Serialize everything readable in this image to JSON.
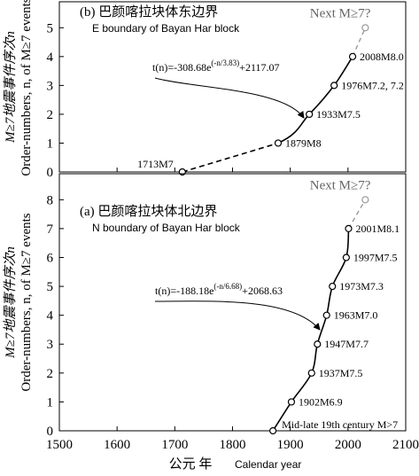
{
  "chart_data": [
    {
      "type": "line",
      "panel_title": "(b) 巴颜喀拉块体东边界",
      "panel_subtitle": "E boundary of Bayan Har block",
      "ylabel": "M≥7地震事件序次n",
      "ylabel_en": "Order-numbers, n, of M≥7 events",
      "formula": {
        "base": "t(n)=-308.68e",
        "exponent": "(-n/3.83)",
        "tail": "+2117.07"
      },
      "xlim": [
        1500,
        2100
      ],
      "xticks": [
        1500,
        1600,
        1700,
        1800,
        1900,
        2000,
        2100
      ],
      "ylim": [
        0,
        5.9
      ],
      "yticks": [
        0,
        1,
        2,
        3,
        4,
        5
      ],
      "series": [
        {
          "x": [
            1713,
            1879,
            1933,
            1976,
            2008
          ],
          "values": [
            0,
            1,
            2,
            3,
            4
          ],
          "color": "#000000",
          "point_labels": [
            "1713M7",
            "1879M8",
            "1933M7.5",
            "1976M7.2, 7.2",
            "2008M8.0"
          ],
          "line_styles": [
            "dashed",
            "solid",
            "solid",
            "solid"
          ]
        },
        {
          "name": "Next M≥7?",
          "x": [
            2030
          ],
          "values": [
            5
          ],
          "color": "#999999"
        }
      ]
    },
    {
      "type": "line",
      "panel_title": "(a) 巴颜喀拉块体北边界",
      "panel_subtitle": "N boundary of Bayan Har block",
      "ylabel": "M≥7地震事件序次n",
      "ylabel_en": "Order-numbers, n, of M≥7 events",
      "xlabel": "公元 年",
      "xlabel_en": "Calendar year",
      "formula": {
        "base": "t(n)=-188.18e",
        "exponent": "(-n/6.68)",
        "tail": "+2068.63"
      },
      "xlim": [
        1500,
        2100
      ],
      "xticks": [
        1500,
        1600,
        1700,
        1800,
        1900,
        2000,
        2100
      ],
      "ylim": [
        0,
        8.9
      ],
      "yticks": [
        0,
        1,
        2,
        3,
        4,
        5,
        6,
        7,
        8
      ],
      "series": [
        {
          "x": [
            1870,
            1902,
            1937,
            1947,
            1963,
            1973,
            1997,
            2001
          ],
          "values": [
            0,
            1,
            2,
            3,
            4,
            5,
            6,
            7
          ],
          "color": "#000000",
          "point_labels": [
            "Mid-late 19th century M>7",
            "1902M6.9",
            "1937M7.5",
            "1947M7.7",
            "1963M7.0",
            "1973M7.3",
            "1997M7.5",
            "2001M8.1"
          ],
          "line_styles": [
            "solid",
            "solid",
            "solid",
            "solid",
            "solid",
            "solid",
            "solid"
          ]
        },
        {
          "name": "Next M≥7?",
          "x": [
            2030
          ],
          "values": [
            8
          ],
          "color": "#999999"
        }
      ]
    }
  ]
}
